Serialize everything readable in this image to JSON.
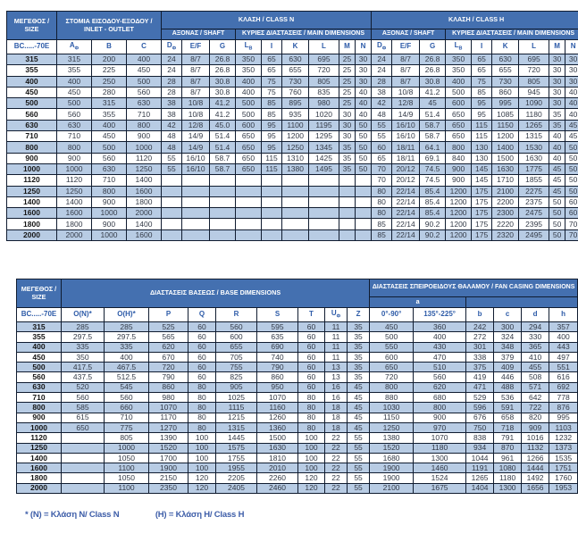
{
  "colors": {
    "header_bg": "#4470b0",
    "stripe_bg": "#b8cce4",
    "border": "#101c30",
    "column_header_text": "#2d5ba8",
    "data_text": "#333a47",
    "footnote_text": "#3d5da8"
  },
  "table1": {
    "size_header": "ΜΕΓΕΘΟΣ / SIZE",
    "model_header": "BC.....-70E",
    "inlet_outlet_header": "ΣΤΟΜΙΑ ΕΙΣΟΔΟΥ-ΕΞΟΔΟΥ / INLET - OUTLET",
    "class_n_header": "ΚΛΑΣΗ / CLASS N",
    "class_h_header": "ΚΛΑΣΗ / CLASS H",
    "shaft_header": "ΑΞΟΝΑΣ / SHAFT",
    "main_dims_header": "ΚΥΡΙΕΣ ΔΙΑΣΤΑΣΕΙΣ / MAIN DIMENSIONS",
    "inlet_cols": [
      "A|Φ",
      "B",
      "C"
    ],
    "class_cols": [
      "D|Φ",
      "E/F",
      "G",
      "L|B",
      "I",
      "K",
      "L",
      "M",
      "N"
    ],
    "rows": [
      {
        "size": "315",
        "inlet": [
          "315",
          "200",
          "400"
        ],
        "class_n": [
          "24",
          "8/7",
          "26.8",
          "350",
          "65",
          "630",
          "695",
          "25",
          "30"
        ],
        "class_h": [
          "24",
          "8/7",
          "26.8",
          "350",
          "65",
          "630",
          "695",
          "30",
          "30"
        ]
      },
      {
        "size": "355",
        "inlet": [
          "355",
          "225",
          "450"
        ],
        "class_n": [
          "24",
          "8/7",
          "26.8",
          "350",
          "65",
          "655",
          "720",
          "25",
          "30"
        ],
        "class_h": [
          "24",
          "8/7",
          "26.8",
          "350",
          "65",
          "655",
          "720",
          "30",
          "30"
        ]
      },
      {
        "size": "400",
        "inlet": [
          "400",
          "250",
          "500"
        ],
        "class_n": [
          "28",
          "8/7",
          "30.8",
          "400",
          "75",
          "730",
          "805",
          "25",
          "30"
        ],
        "class_h": [
          "28",
          "8/7",
          "30.8",
          "400",
          "75",
          "730",
          "805",
          "30",
          "30"
        ]
      },
      {
        "size": "450",
        "inlet": [
          "450",
          "280",
          "560"
        ],
        "class_n": [
          "28",
          "8/7",
          "30.8",
          "400",
          "75",
          "760",
          "835",
          "25",
          "40"
        ],
        "class_h": [
          "38",
          "10/8",
          "41.2",
          "500",
          "85",
          "860",
          "945",
          "30",
          "40"
        ]
      },
      {
        "size": "500",
        "inlet": [
          "500",
          "315",
          "630"
        ],
        "class_n": [
          "38",
          "10/8",
          "41.2",
          "500",
          "85",
          "895",
          "980",
          "25",
          "40"
        ],
        "class_h": [
          "42",
          "12/8",
          "45",
          "600",
          "95",
          "995",
          "1090",
          "30",
          "40"
        ]
      },
      {
        "size": "560",
        "inlet": [
          "560",
          "355",
          "710"
        ],
        "class_n": [
          "38",
          "10/8",
          "41.2",
          "500",
          "85",
          "935",
          "1020",
          "30",
          "40"
        ],
        "class_h": [
          "48",
          "14/9",
          "51.4",
          "650",
          "95",
          "1085",
          "1180",
          "35",
          "40"
        ]
      },
      {
        "size": "630",
        "inlet": [
          "630",
          "400",
          "800"
        ],
        "class_n": [
          "42",
          "12/8",
          "45.0",
          "600",
          "95",
          "1100",
          "1195",
          "30",
          "50"
        ],
        "class_h": [
          "55",
          "16/10",
          "58.7",
          "650",
          "115",
          "1150",
          "1265",
          "35",
          "45"
        ]
      },
      {
        "size": "710",
        "inlet": [
          "710",
          "450",
          "900"
        ],
        "class_n": [
          "48",
          "14/9",
          "51.4",
          "650",
          "95",
          "1200",
          "1295",
          "30",
          "50"
        ],
        "class_h": [
          "55",
          "16/10",
          "58.7",
          "650",
          "115",
          "1200",
          "1315",
          "40",
          "45"
        ]
      },
      {
        "size": "800",
        "inlet": [
          "800",
          "500",
          "1000"
        ],
        "class_n": [
          "48",
          "14/9",
          "51.4",
          "650",
          "95",
          "1250",
          "1345",
          "35",
          "50"
        ],
        "class_h": [
          "60",
          "18/11",
          "64.1",
          "800",
          "130",
          "1400",
          "1530",
          "40",
          "50"
        ]
      },
      {
        "size": "900",
        "inlet": [
          "900",
          "560",
          "1120"
        ],
        "class_n": [
          "55",
          "16/10",
          "58.7",
          "650",
          "115",
          "1310",
          "1425",
          "35",
          "50"
        ],
        "class_h": [
          "65",
          "18/11",
          "69.1",
          "840",
          "130",
          "1500",
          "1630",
          "40",
          "50"
        ]
      },
      {
        "size": "1000",
        "inlet": [
          "1000",
          "630",
          "1250"
        ],
        "class_n": [
          "55",
          "16/10",
          "58.7",
          "650",
          "115",
          "1380",
          "1495",
          "35",
          "50"
        ],
        "class_h": [
          "70",
          "20/12",
          "74.5",
          "900",
          "145",
          "1630",
          "1775",
          "45",
          "50"
        ]
      },
      {
        "size": "1120",
        "inlet": [
          "1120",
          "710",
          "1400"
        ],
        "class_n": [
          "",
          "",
          "",
          "",
          "",
          "",
          "",
          "",
          ""
        ],
        "class_h": [
          "70",
          "20/12",
          "74.5",
          "900",
          "145",
          "1710",
          "1855",
          "45",
          "50"
        ]
      },
      {
        "size": "1250",
        "inlet": [
          "1250",
          "800",
          "1600"
        ],
        "class_n": [
          "",
          "",
          "",
          "",
          "",
          "",
          "",
          "",
          ""
        ],
        "class_h": [
          "80",
          "22/14",
          "85.4",
          "1200",
          "175",
          "2100",
          "2275",
          "45",
          "50"
        ]
      },
      {
        "size": "1400",
        "inlet": [
          "1400",
          "900",
          "1800"
        ],
        "class_n": [
          "",
          "",
          "",
          "",
          "",
          "",
          "",
          "",
          ""
        ],
        "class_h": [
          "80",
          "22/14",
          "85.4",
          "1200",
          "175",
          "2200",
          "2375",
          "50",
          "60"
        ]
      },
      {
        "size": "1600",
        "inlet": [
          "1600",
          "1000",
          "2000"
        ],
        "class_n": [
          "",
          "",
          "",
          "",
          "",
          "",
          "",
          "",
          ""
        ],
        "class_h": [
          "80",
          "22/14",
          "85.4",
          "1200",
          "175",
          "2300",
          "2475",
          "50",
          "60"
        ]
      },
      {
        "size": "1800",
        "inlet": [
          "1800",
          "900",
          "1400"
        ],
        "class_n": [
          "",
          "",
          "",
          "",
          "",
          "",
          "",
          "",
          ""
        ],
        "class_h": [
          "85",
          "22/14",
          "90.2",
          "1200",
          "175",
          "2220",
          "2395",
          "50",
          "70"
        ]
      },
      {
        "size": "2000",
        "inlet": [
          "2000",
          "1000",
          "1600"
        ],
        "class_n": [
          "",
          "",
          "",
          "",
          "",
          "",
          "",
          "",
          ""
        ],
        "class_h": [
          "85",
          "22/14",
          "90.2",
          "1200",
          "175",
          "2320",
          "2495",
          "50",
          "70"
        ]
      }
    ]
  },
  "table2": {
    "size_header": "ΜΕΓΕΘΟΣ / SIZE",
    "model_header": "BC.....-70E",
    "base_header": "ΔΙΑΣΤΑΣΕΙΣ ΒΑΣΕΩΣ / BASE DIMENSIONS",
    "casing_header": "ΔΙΑΣΤΑΣΕΙΣ ΣΠΕΙΡΟΕΙΔΟΥΣ ΘΑΛΑΜΟΥ / FAN CASING DIMENSIONS",
    "a_header": "a",
    "base_cols": [
      "O(N)*",
      "O(H)*",
      "P",
      "Q",
      "R",
      "S",
      "T",
      "U|Φ",
      "Z"
    ],
    "angle_cols": [
      "0°-90°",
      "135°-225°"
    ],
    "casing_cols": [
      "b",
      "c",
      "d",
      "h"
    ],
    "rows": [
      {
        "size": "315",
        "base": [
          "285",
          "285",
          "525",
          "60",
          "560",
          "595",
          "60",
          "11",
          "35"
        ],
        "casing": [
          "450",
          "360",
          "242",
          "300",
          "294",
          "357"
        ]
      },
      {
        "size": "355",
        "base": [
          "297.5",
          "297.5",
          "565",
          "60",
          "600",
          "635",
          "60",
          "11",
          "35"
        ],
        "casing": [
          "500",
          "400",
          "272",
          "324",
          "330",
          "400"
        ]
      },
      {
        "size": "400",
        "base": [
          "335",
          "335",
          "620",
          "60",
          "655",
          "690",
          "60",
          "11",
          "35"
        ],
        "casing": [
          "550",
          "430",
          "301",
          "348",
          "365",
          "443"
        ]
      },
      {
        "size": "450",
        "base": [
          "350",
          "400",
          "670",
          "60",
          "705",
          "740",
          "60",
          "11",
          "35"
        ],
        "casing": [
          "600",
          "470",
          "338",
          "379",
          "410",
          "497"
        ]
      },
      {
        "size": "500",
        "base": [
          "417.5",
          "467.5",
          "720",
          "60",
          "755",
          "790",
          "60",
          "13",
          "35"
        ],
        "casing": [
          "650",
          "510",
          "375",
          "409",
          "455",
          "551"
        ]
      },
      {
        "size": "560",
        "base": [
          "437.5",
          "512.5",
          "790",
          "60",
          "825",
          "860",
          "60",
          "13",
          "35"
        ],
        "casing": [
          "720",
          "560",
          "419",
          "446",
          "508",
          "616"
        ]
      },
      {
        "size": "630",
        "base": [
          "520",
          "545",
          "860",
          "80",
          "905",
          "950",
          "60",
          "16",
          "45"
        ],
        "casing": [
          "800",
          "620",
          "471",
          "488",
          "571",
          "692"
        ]
      },
      {
        "size": "710",
        "base": [
          "560",
          "560",
          "980",
          "80",
          "1025",
          "1070",
          "80",
          "16",
          "45"
        ],
        "casing": [
          "880",
          "680",
          "529",
          "536",
          "642",
          "778"
        ]
      },
      {
        "size": "800",
        "base": [
          "585",
          "660",
          "1070",
          "80",
          "1115",
          "1160",
          "80",
          "18",
          "45"
        ],
        "casing": [
          "1030",
          "800",
          "596",
          "591",
          "722",
          "876"
        ]
      },
      {
        "size": "900",
        "base": [
          "615",
          "710",
          "1170",
          "80",
          "1215",
          "1260",
          "80",
          "18",
          "45"
        ],
        "casing": [
          "1150",
          "900",
          "676",
          "658",
          "820",
          "995"
        ]
      },
      {
        "size": "1000",
        "base": [
          "650",
          "775",
          "1270",
          "80",
          "1315",
          "1360",
          "80",
          "18",
          "45"
        ],
        "casing": [
          "1250",
          "970",
          "750",
          "718",
          "909",
          "1103"
        ]
      },
      {
        "size": "1120",
        "base": [
          "",
          "805",
          "1390",
          "100",
          "1445",
          "1500",
          "100",
          "22",
          "55"
        ],
        "casing": [
          "1380",
          "1070",
          "838",
          "791",
          "1016",
          "1232"
        ]
      },
      {
        "size": "1250",
        "base": [
          "",
          "1000",
          "1520",
          "100",
          "1575",
          "1630",
          "100",
          "22",
          "55"
        ],
        "casing": [
          "1520",
          "1180",
          "934",
          "870",
          "1132",
          "1373"
        ]
      },
      {
        "size": "1400",
        "base": [
          "",
          "1050",
          "1700",
          "100",
          "1755",
          "1810",
          "100",
          "22",
          "55"
        ],
        "casing": [
          "1680",
          "1300",
          "1044",
          "961",
          "1266",
          "1535"
        ]
      },
      {
        "size": "1600",
        "base": [
          "",
          "1100",
          "1900",
          "100",
          "1955",
          "2010",
          "100",
          "22",
          "55"
        ],
        "casing": [
          "1900",
          "1460",
          "1191",
          "1080",
          "1444",
          "1751"
        ]
      },
      {
        "size": "1800",
        "base": [
          "",
          "1050",
          "2150",
          "120",
          "2205",
          "2260",
          "120",
          "22",
          "55"
        ],
        "casing": [
          "1900",
          "1524",
          "1265",
          "1180",
          "1492",
          "1760"
        ]
      },
      {
        "size": "2000",
        "base": [
          "",
          "1100",
          "2350",
          "120",
          "2405",
          "2460",
          "120",
          "22",
          "55"
        ],
        "casing": [
          "2100",
          "1675",
          "1404",
          "1300",
          "1656",
          "1953"
        ]
      }
    ]
  },
  "footnotes": {
    "n": "* (N) = Κλάση N/ Class N",
    "h": "(H) = Κλάση H/ Class H"
  }
}
